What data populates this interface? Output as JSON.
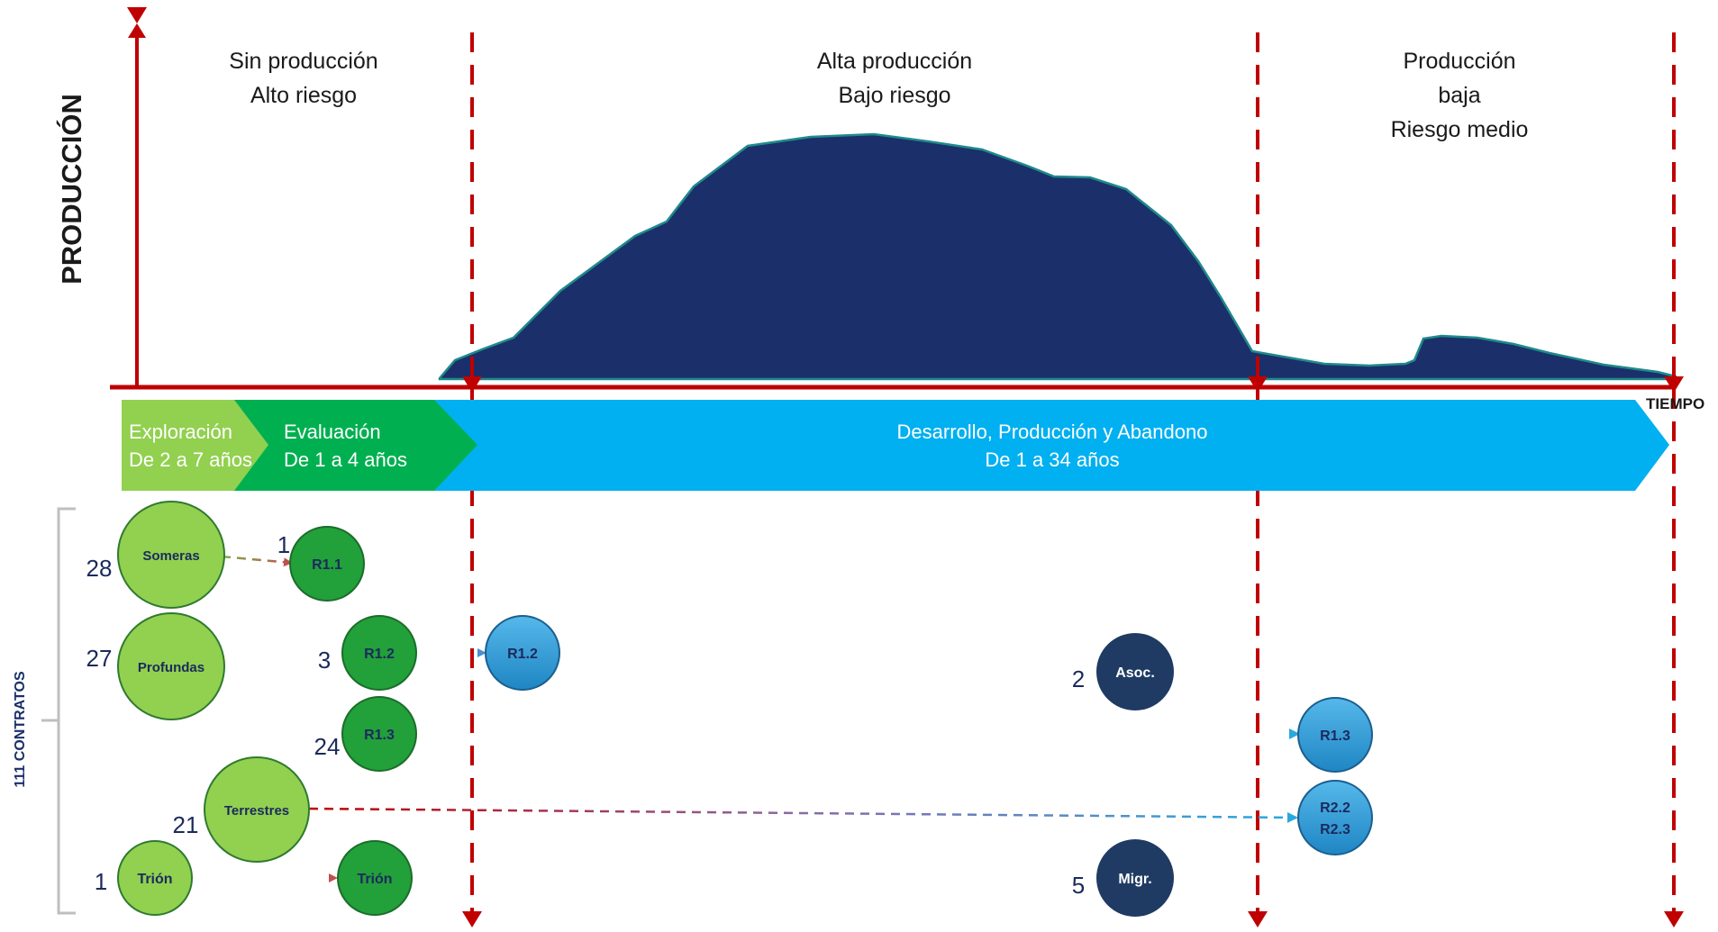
{
  "axes": {
    "y_label": "PRODUCCIÓN",
    "x_label": "TIEMPO",
    "accent_color": "#c00000"
  },
  "zones": {
    "zone1": {
      "line1": "Sin producción",
      "line2": "Alto riesgo"
    },
    "zone2": {
      "line1": "Alta producción",
      "line2": "Bajo riesgo"
    },
    "zone3": {
      "line1": "Producción",
      "line2": "baja",
      "line3": "Riesgo medio"
    }
  },
  "production_curve": {
    "color": "#1b2f6b",
    "edge_color": "#1f8a8a"
  },
  "phases": {
    "exploration": {
      "label": "Exploración",
      "duration": "De 2 a 7 años",
      "color": "#92d050"
    },
    "evaluation": {
      "label": "Evaluación",
      "duration": "De 1 a 4 años",
      "color": "#00b050"
    },
    "development": {
      "label": "Desarrollo, Producción y Abandono",
      "duration": "De 1 a 34 años",
      "color": "#00b0f0"
    }
  },
  "contracts": {
    "label": "111 CONTRATOS"
  },
  "nodes": {
    "someras": {
      "label": "Someras",
      "count": "28"
    },
    "profundas": {
      "label": "Profundas",
      "count": "27"
    },
    "terrestres": {
      "label": "Terrestres",
      "count": "21"
    },
    "trion_left": {
      "label": "Trión",
      "count": "1"
    },
    "r11": {
      "label": "R1.1",
      "count": "1"
    },
    "r12_eval": {
      "label": "R1.2",
      "count": "3"
    },
    "r13_eval": {
      "label": "R1.3",
      "count": "24"
    },
    "trion_eval": {
      "label": "Trión"
    },
    "r12_dev": {
      "label": "R1.2"
    },
    "asoc": {
      "label": "Asoc.",
      "count": "2"
    },
    "migr": {
      "label": "Migr.",
      "count": "5"
    },
    "r13_dev": {
      "label": "R1.3"
    },
    "r22_r23": {
      "label1": "R2.2",
      "label2": "R2.3"
    }
  },
  "colors": {
    "light_green": "#92d050",
    "green": "#22a03a",
    "light_blue": "#2e9bd6",
    "navy": "#1f3b63",
    "dark_text": "#1b2a5c",
    "dashed_red": "#c00000",
    "dashed_blue": "#29a8e0",
    "dashed_orange": "#c0504d"
  }
}
